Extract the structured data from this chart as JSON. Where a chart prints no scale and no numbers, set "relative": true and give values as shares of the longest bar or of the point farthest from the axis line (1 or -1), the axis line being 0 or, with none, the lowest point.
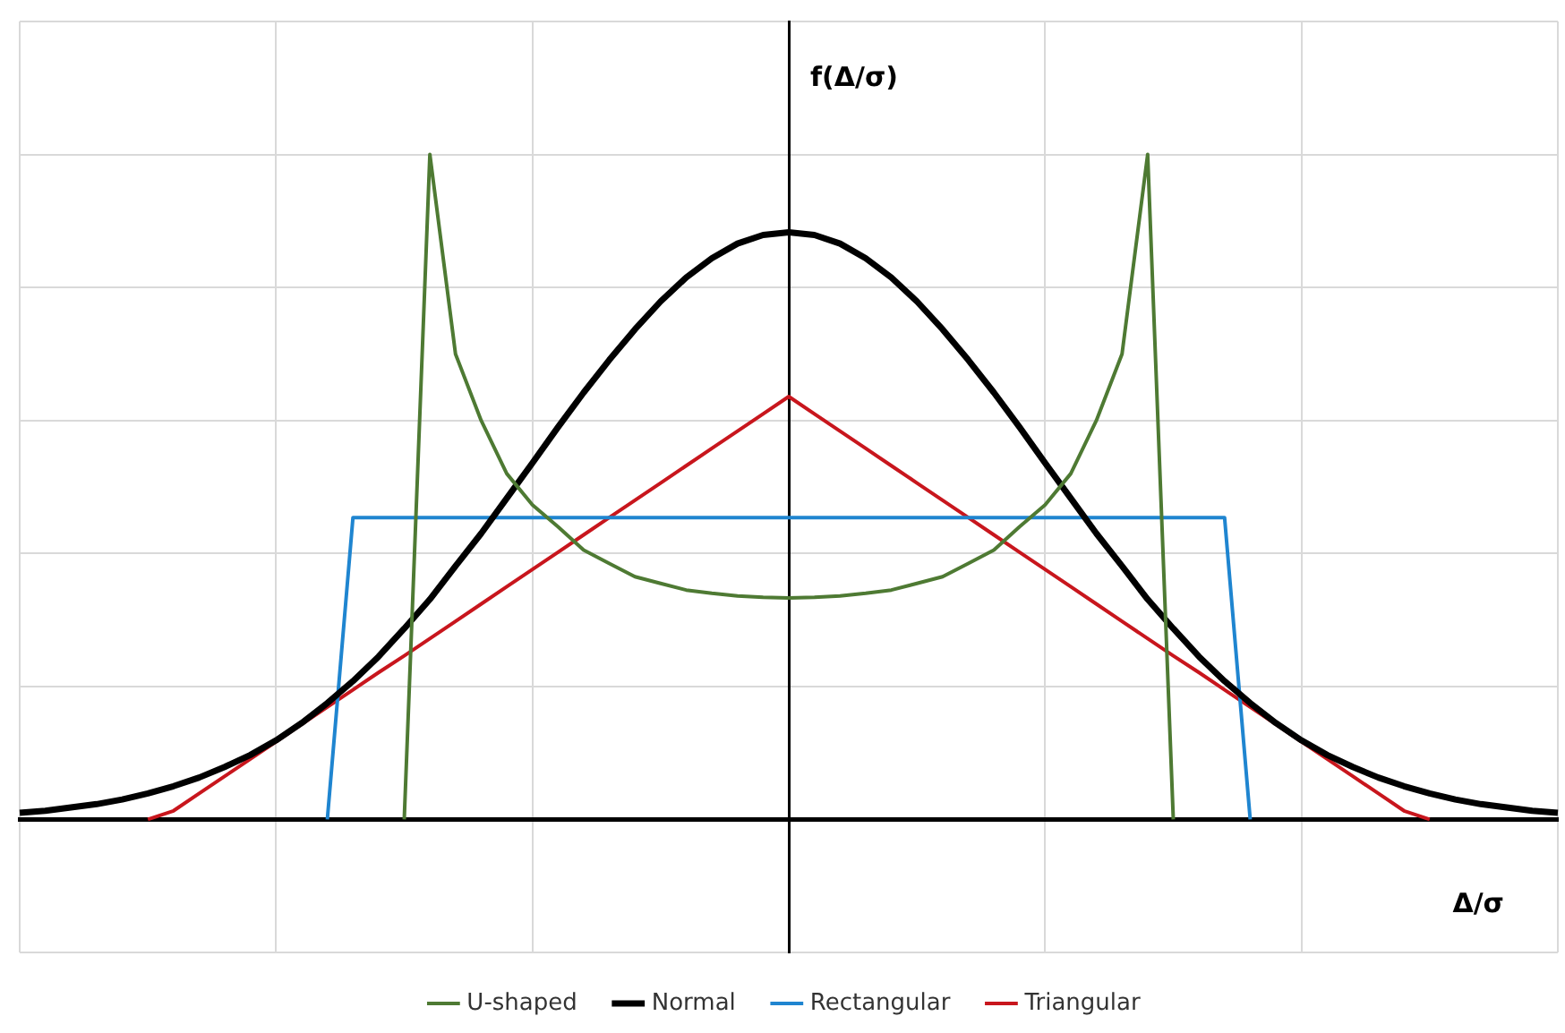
{
  "chart_data": {
    "type": "line",
    "relative": true,
    "xlabel": "Δ/σ",
    "ylabel": "f(Δ/σ)",
    "categories": [
      null,
      null,
      null,
      null,
      null,
      null,
      null,
      null,
      null,
      null,
      null,
      null,
      null,
      null,
      null,
      null,
      null,
      null,
      null,
      null,
      null,
      null,
      null,
      null,
      null,
      null,
      null,
      null,
      null,
      null,
      null,
      null,
      null,
      null,
      null,
      null,
      null,
      null,
      null,
      null,
      null,
      null,
      null,
      null,
      null,
      null,
      null,
      null,
      null,
      null,
      null,
      null,
      null,
      null,
      null,
      null,
      null,
      null,
      null,
      null,
      null
    ],
    "grid": true,
    "legend": "bottom",
    "marker": "none",
    "series": [
      {
        "name": "U-shaped",
        "color": "#4e7a33",
        "values": [
          null,
          null,
          null,
          null,
          null,
          null,
          null,
          null,
          null,
          null,
          null,
          null,
          null,
          null,
          null,
          0,
          1,
          0.7,
          0.6,
          0.52,
          0.473,
          0.44,
          0.405,
          0.385,
          0.365,
          0.355,
          0.345,
          0.34,
          0.336,
          0.334,
          0.333,
          0.334,
          0.336,
          0.34,
          0.345,
          0.355,
          0.365,
          0.385,
          0.405,
          0.44,
          0.473,
          0.52,
          0.6,
          0.7,
          1,
          0,
          null,
          null,
          null,
          null,
          null,
          null,
          null,
          null,
          null,
          null,
          null,
          null,
          null,
          null,
          null
        ]
      },
      {
        "name": "Normal",
        "color": "#000000",
        "values": [
          0.01,
          0.013,
          0.018,
          0.023,
          0.03,
          0.039,
          0.05,
          0.063,
          0.079,
          0.097,
          0.119,
          0.145,
          0.175,
          0.208,
          0.245,
          0.287,
          0.331,
          0.381,
          0.43,
          0.483,
          0.536,
          0.59,
          0.642,
          0.691,
          0.737,
          0.779,
          0.815,
          0.844,
          0.866,
          0.879,
          0.883,
          0.879,
          0.866,
          0.844,
          0.815,
          0.779,
          0.737,
          0.691,
          0.642,
          0.59,
          0.536,
          0.483,
          0.43,
          0.381,
          0.331,
          0.287,
          0.245,
          0.208,
          0.175,
          0.145,
          0.119,
          0.097,
          0.079,
          0.063,
          0.05,
          0.039,
          0.03,
          0.023,
          0.018,
          0.013,
          0.01
        ]
      },
      {
        "name": "Rectangular",
        "color": "#1f85d0",
        "values": [
          null,
          null,
          null,
          null,
          null,
          null,
          null,
          null,
          null,
          null,
          null,
          null,
          0,
          0.454,
          0.454,
          0.454,
          0.454,
          0.454,
          0.454,
          0.454,
          0.454,
          0.454,
          0.454,
          0.454,
          0.454,
          0.454,
          0.454,
          0.454,
          0.454,
          0.454,
          0.454,
          0.454,
          0.454,
          0.454,
          0.454,
          0.454,
          0.454,
          0.454,
          0.454,
          0.454,
          0.454,
          0.454,
          0.454,
          0.454,
          0.454,
          0.454,
          0.454,
          0.454,
          0,
          null,
          null,
          null,
          null,
          null,
          null,
          null,
          null,
          null,
          null,
          null,
          null
        ]
      },
      {
        "name": "Triangular",
        "color": "#c8161d",
        "values": [
          null,
          null,
          null,
          null,
          null,
          0,
          0.013,
          0.039,
          0.065,
          0.091,
          0.117,
          0.143,
          0.169,
          0.195,
          0.221,
          0.246,
          0.272,
          0.298,
          0.324,
          0.35,
          0.376,
          0.402,
          0.428,
          0.454,
          0.48,
          0.506,
          0.532,
          0.558,
          0.584,
          0.61,
          0.636,
          0.61,
          0.584,
          0.558,
          0.532,
          0.506,
          0.48,
          0.454,
          0.428,
          0.402,
          0.376,
          0.35,
          0.324,
          0.298,
          0.272,
          0.246,
          0.221,
          0.195,
          0.169,
          0.143,
          0.117,
          0.091,
          0.065,
          0.039,
          0.013,
          0,
          null,
          null,
          null,
          null,
          null
        ]
      }
    ]
  }
}
